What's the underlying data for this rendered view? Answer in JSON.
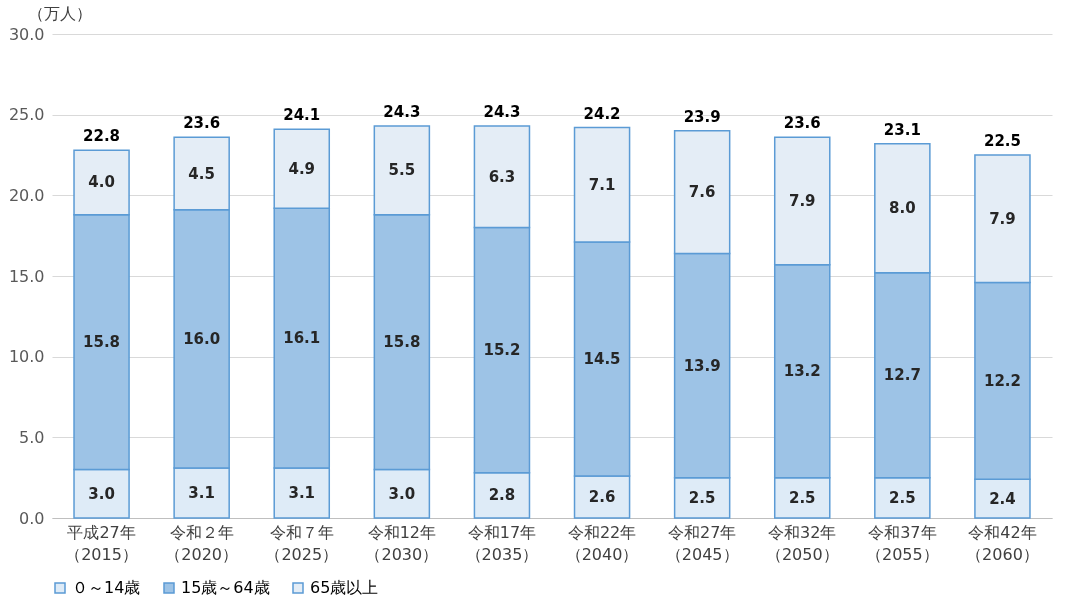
{
  "chart_data": {
    "type": "bar",
    "stacked": true,
    "ylabel": "（万人）",
    "categories": [
      "平成27年（2015）",
      "令和２年（2020）",
      "令和７年（2025）",
      "令和12年（2030）",
      "令和17年（2035）",
      "令和22年（2040）",
      "令和27年（2045）",
      "令和32年（2050）",
      "令和37年（2055）",
      "令和42年（2060）"
    ],
    "series": [
      {
        "name": "０～14歳",
        "color": "#deebf7",
        "values": [
          3.0,
          3.1,
          3.1,
          3.0,
          2.8,
          2.6,
          2.5,
          2.5,
          2.5,
          2.4
        ],
        "value_labels": [
          "3.0",
          "3.1",
          "3.1",
          "3.0",
          "2.8",
          "2.6",
          "2.5",
          "2.5",
          "2.5",
          "2.4"
        ]
      },
      {
        "name": "15歳～64歳",
        "color": "#9dc3e6",
        "values": [
          15.8,
          16.0,
          16.1,
          15.8,
          15.2,
          14.5,
          13.9,
          13.2,
          12.7,
          12.2
        ],
        "value_labels": [
          "15.8",
          "16.0",
          "16.1",
          "15.8",
          "15.2",
          "14.5",
          "13.9",
          "13.2",
          "12.7",
          "12.2"
        ]
      },
      {
        "name": "65歳以上",
        "color": "#e4edf6",
        "values": [
          4.0,
          4.5,
          4.9,
          5.5,
          6.3,
          7.1,
          7.6,
          7.9,
          8.0,
          7.9
        ],
        "value_labels": [
          "4.0",
          "4.5",
          "4.9",
          "5.5",
          "6.3",
          "7.1",
          "7.6",
          "7.9",
          "8.0",
          "7.9"
        ]
      }
    ],
    "totals": [
      "22.8",
      "23.6",
      "24.1",
      "24.3",
      "24.3",
      "24.2",
      "23.9",
      "23.6",
      "23.1",
      "22.5"
    ],
    "ylim": [
      0,
      30
    ],
    "yticks": [
      {
        "value": 0,
        "label": "0.0"
      },
      {
        "value": 5,
        "label": "5.0"
      },
      {
        "value": 10,
        "label": "10.0"
      },
      {
        "value": 15,
        "label": "15.0"
      },
      {
        "value": 20,
        "label": "20.0"
      },
      {
        "value": 25,
        "label": "25.0"
      },
      {
        "value": 30,
        "label": "30.0"
      }
    ],
    "grid": "y",
    "legend": "bottom"
  }
}
